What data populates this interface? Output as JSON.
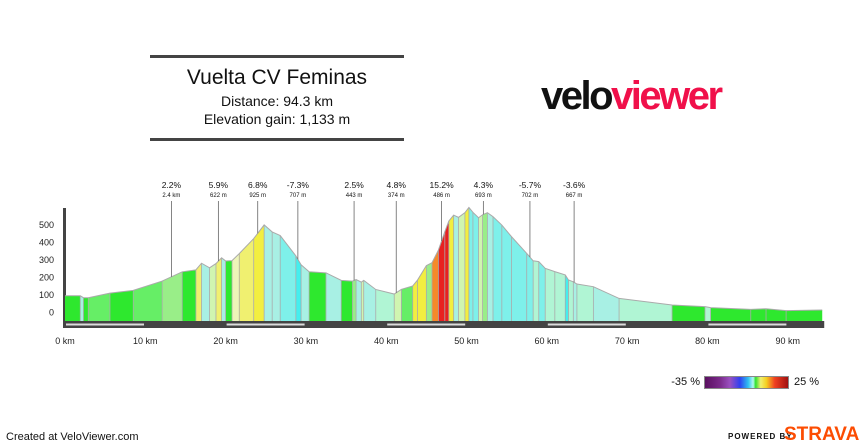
{
  "header": {
    "title": "Vuelta CV Feminas",
    "distance": "Distance: 94.3 km",
    "elevation_gain": "Elevation gain: 1,133 m"
  },
  "logo": {
    "part1": "velo",
    "part2": "viewer",
    "colors": {
      "velo": "#111111",
      "viewer": "#f0104a"
    }
  },
  "legend": {
    "min": "-35 %",
    "max": "25 %"
  },
  "footer": {
    "created": "Created at VeloViewer.com",
    "powered_by": "POWERED BY",
    "strava": "STRAVA",
    "strava_color": "#fc4c02"
  },
  "chart_data": {
    "type": "area",
    "title": "",
    "xlabel": "",
    "ylabel": "",
    "xlim": [
      0,
      94.3
    ],
    "ylim": [
      0,
      600
    ],
    "x_tick_labels": [
      "0 km",
      "10 km",
      "20 km",
      "30 km",
      "40 km",
      "50 km",
      "60 km",
      "70 km",
      "80 km",
      "90 km"
    ],
    "y_tick_labels": [
      "0",
      "100",
      "200",
      "300",
      "400",
      "500"
    ],
    "color_by": "gradient",
    "points_km": [
      0,
      1.9,
      2.3,
      2.9,
      5.6,
      8.5,
      12.1,
      14.6,
      16.3,
      17,
      18,
      18.8,
      19.5,
      20,
      20.8,
      21.7,
      23.5,
      24.8,
      25.8,
      26.8,
      28.75,
      29.4,
      30.4,
      32.5,
      34.4,
      35.8,
      36.25,
      36.9,
      37.2,
      38.7,
      41,
      41.9,
      43.3,
      43.9,
      45,
      45.7,
      46.5,
      47.3,
      47.8,
      48.4,
      49,
      49.8,
      50.3,
      50.8,
      51.5,
      52,
      52.6,
      53.3,
      54.4,
      55.6,
      57.5,
      58.3,
      59,
      59.8,
      61,
      62.3,
      62.7,
      63.3,
      63.75,
      65.8,
      69,
      75.6,
      79.7,
      80.4,
      85.4,
      87.3,
      89.8,
      94.3
    ],
    "elevation_m": [
      91,
      91,
      80,
      80,
      106,
      122,
      175,
      228,
      239,
      277,
      251,
      275,
      308,
      290,
      292,
      332,
      418,
      496,
      456,
      435,
      319,
      268,
      228,
      222,
      179,
      175,
      184,
      169,
      179,
      127,
      101,
      128,
      147,
      181,
      263,
      280,
      352,
      457,
      518,
      552,
      539,
      566,
      596,
      568,
      537,
      554,
      566,
      543,
      495,
      429,
      333,
      291,
      286,
      248,
      229,
      210,
      181,
      171,
      158,
      143,
      76,
      38,
      29,
      23,
      13,
      17,
      6,
      10
    ],
    "annotations": [
      {
        "km": 13.25,
        "grade": "2.2%",
        "sub": "2.4 km"
      },
      {
        "km": 19.1,
        "grade": "5.9%",
        "sub": "622 m"
      },
      {
        "km": 24.0,
        "grade": "6.8%",
        "sub": "925 m"
      },
      {
        "km": 29.0,
        "grade": "-7.3%",
        "sub": "707 m"
      },
      {
        "km": 36.0,
        "grade": "2.5%",
        "sub": "443 m"
      },
      {
        "km": 41.25,
        "grade": "4.8%",
        "sub": "374 m"
      },
      {
        "km": 46.9,
        "grade": "15.2%",
        "sub": "486 m"
      },
      {
        "km": 52.1,
        "grade": "4.3%",
        "sub": "693 m"
      },
      {
        "km": 57.9,
        "grade": "-5.7%",
        "sub": "702 m"
      },
      {
        "km": 63.4,
        "grade": "-3.6%",
        "sub": "667 m"
      }
    ]
  }
}
